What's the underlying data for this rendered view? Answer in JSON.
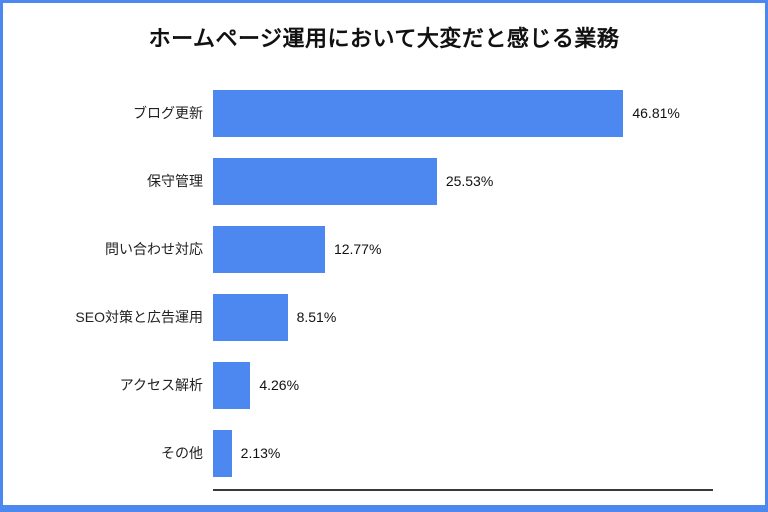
{
  "accent_color": "#4d87f0",
  "axis_color": "#3a3a3a",
  "chart_data": {
    "type": "bar",
    "orientation": "horizontal",
    "title": "ホームページ運用において大変だと感じる業務",
    "categories": [
      "ブログ更新",
      "保守管理",
      "問い合わせ対応",
      "SEO対策と広告運用",
      "アクセス解析",
      "その他"
    ],
    "values": [
      46.81,
      25.53,
      12.77,
      8.51,
      4.26,
      2.13
    ],
    "value_labels": [
      "46.81%",
      "25.53%",
      "12.77%",
      "8.51%",
      "4.26%",
      "2.13%"
    ],
    "xlabel": "",
    "ylabel": "",
    "xlim": [
      0,
      60
    ],
    "bar_color": "#4d87f0",
    "grid": false,
    "legend": false,
    "data_labels_position": "right-of-bar"
  }
}
